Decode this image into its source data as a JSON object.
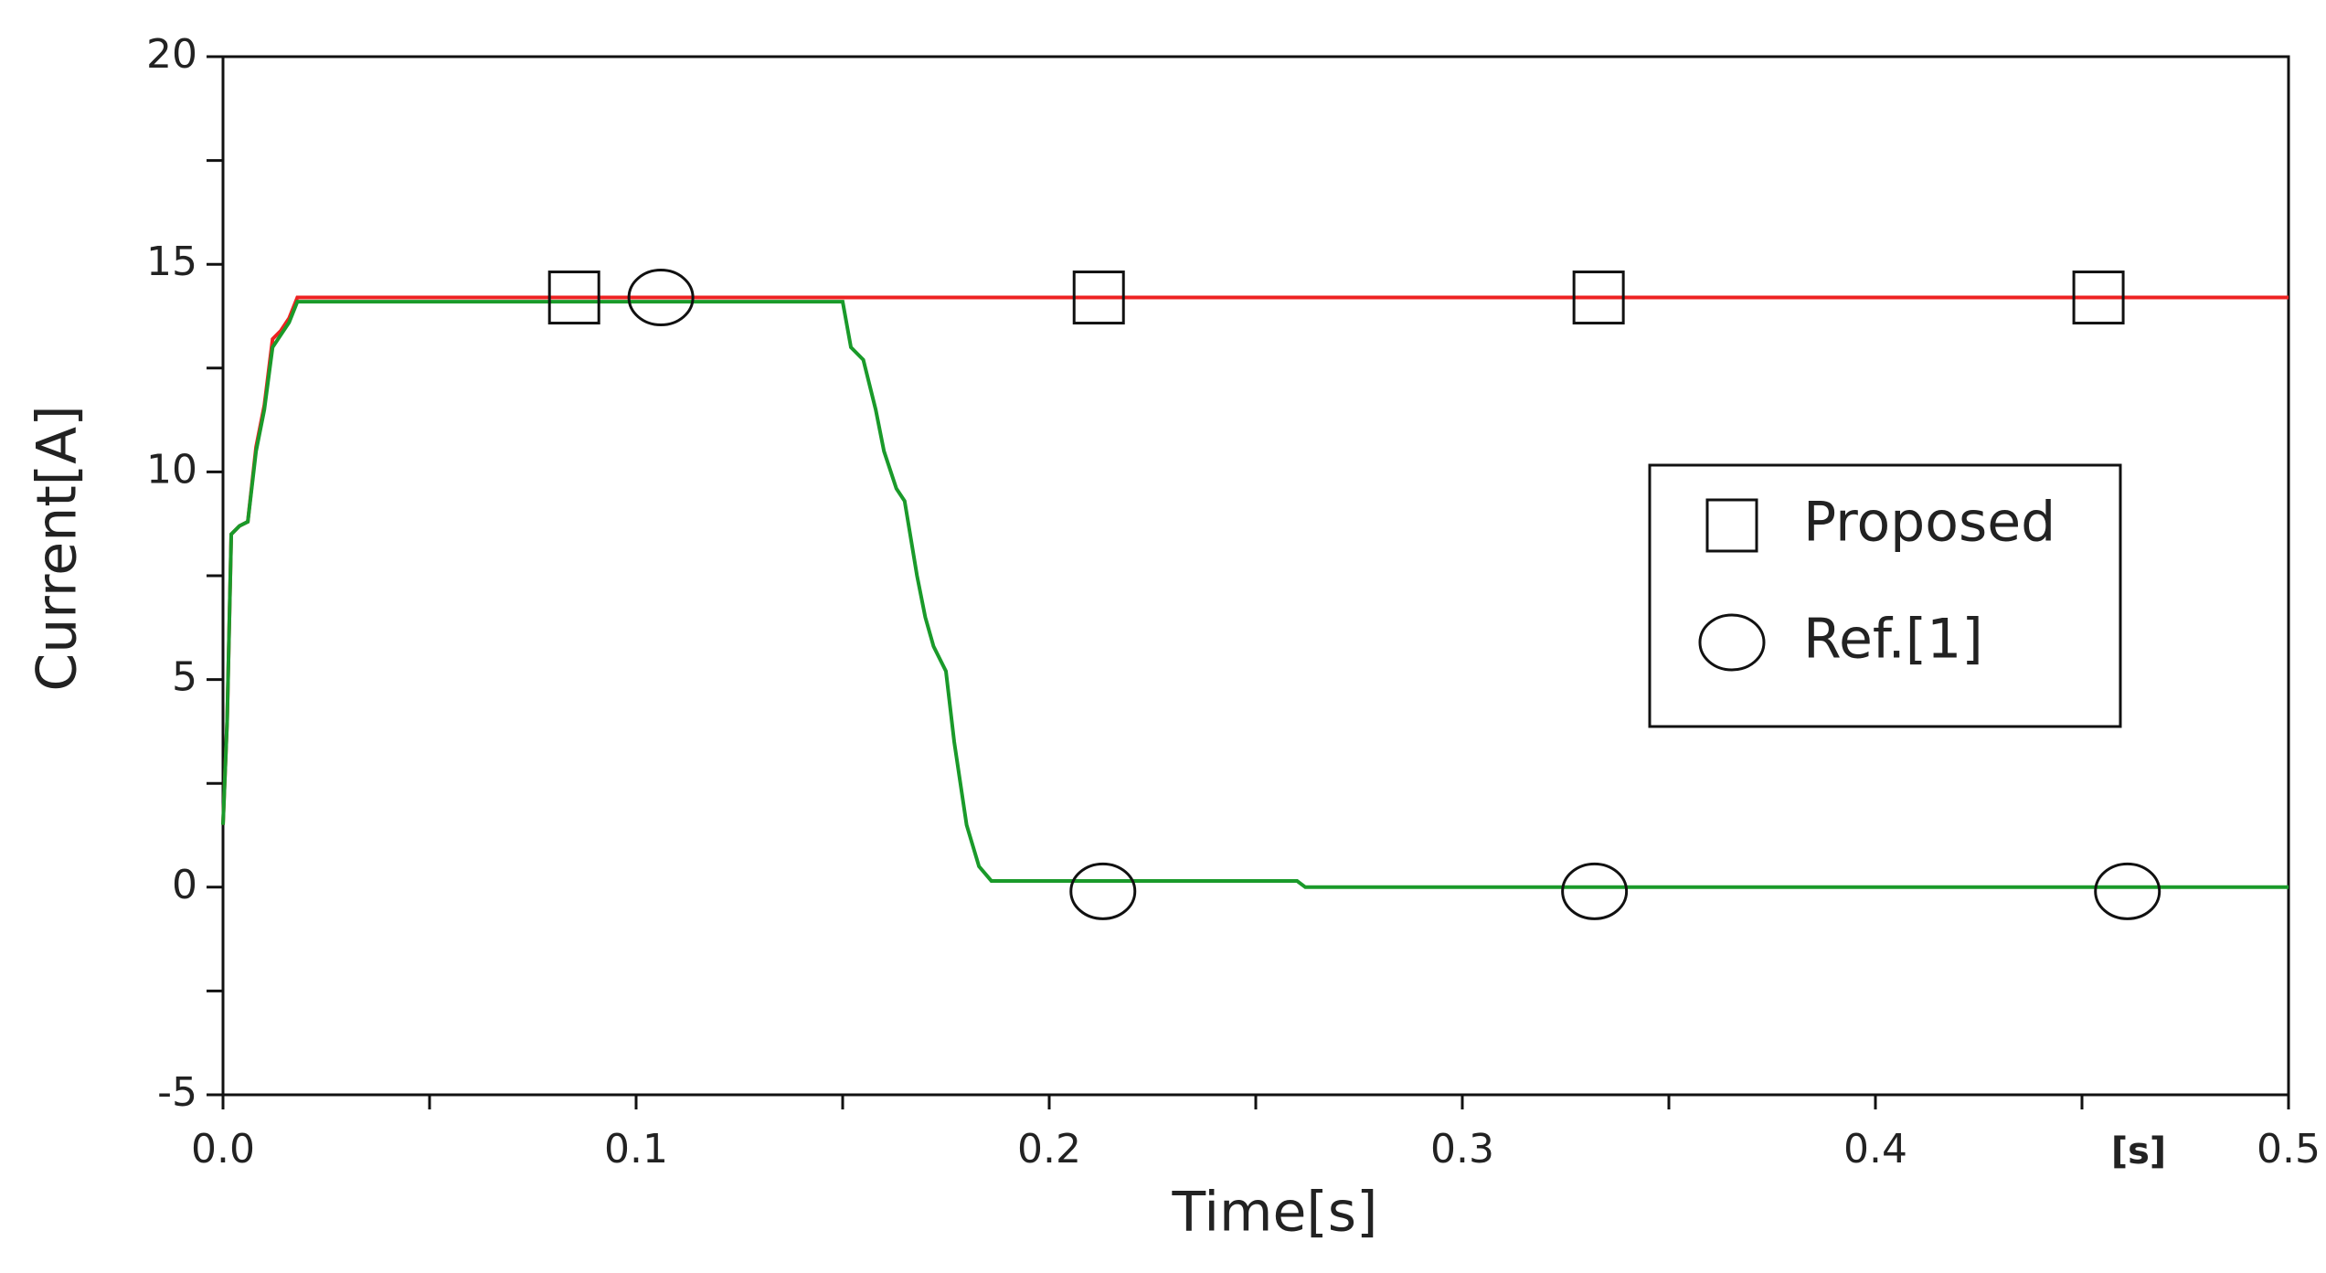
{
  "chart_data": {
    "type": "line",
    "xlabel": "Time[s]",
    "ylabel": "Current[A]",
    "x_unit_label": "[s]",
    "xlim": [
      0,
      0.5
    ],
    "ylim": [
      -5,
      20
    ],
    "xticks": [
      {
        "value": 0,
        "label": "0.0"
      },
      0.1,
      0.2,
      0.3,
      0.4,
      0.5
    ],
    "xminorticks": [
      0.05,
      0.15,
      0.25,
      0.35,
      0.45
    ],
    "yticks": [
      -5,
      0,
      5,
      10,
      15,
      20
    ],
    "yminorticks": [
      -2.5,
      2.5,
      7.5,
      12.5,
      17.5
    ],
    "legend": "right",
    "series": [
      {
        "name": "Proposed",
        "color": "#ee2222",
        "marker": "square",
        "x": [
          0,
          0.001,
          0.002,
          0.004,
          0.006,
          0.008,
          0.01,
          0.012,
          0.014,
          0.016,
          0.018,
          0.5
        ],
        "values": [
          1.5,
          4,
          8.5,
          8.7,
          8.8,
          10.6,
          11.6,
          13.2,
          13.4,
          13.7,
          14.2,
          14.2
        ],
        "marker_x": [
          0.085,
          0.212,
          0.333,
          0.454
        ],
        "marker_values": [
          14.2,
          14.2,
          14.2,
          14.2
        ]
      },
      {
        "name": "Ref.[1]",
        "color": "#1a9a2a",
        "marker": "circle",
        "x": [
          0,
          0.001,
          0.002,
          0.004,
          0.006,
          0.008,
          0.01,
          0.012,
          0.014,
          0.016,
          0.018,
          0.15,
          0.152,
          0.155,
          0.158,
          0.16,
          0.163,
          0.165,
          0.168,
          0.17,
          0.172,
          0.175,
          0.177,
          0.18,
          0.183,
          0.186,
          0.26,
          0.262,
          0.5
        ],
        "values": [
          1.5,
          4,
          8.5,
          8.7,
          8.8,
          10.5,
          11.5,
          13,
          13.3,
          13.6,
          14.1,
          14.1,
          13,
          12.7,
          11.5,
          10.5,
          9.6,
          9.3,
          7.5,
          6.5,
          5.8,
          5.2,
          3.5,
          1.5,
          0.5,
          0.15,
          0.15,
          0,
          0
        ],
        "marker_x": [
          0.106,
          0.213,
          0.332,
          0.461
        ],
        "marker_values": [
          14.2,
          -0.1,
          -0.1,
          -0.1
        ]
      }
    ]
  }
}
